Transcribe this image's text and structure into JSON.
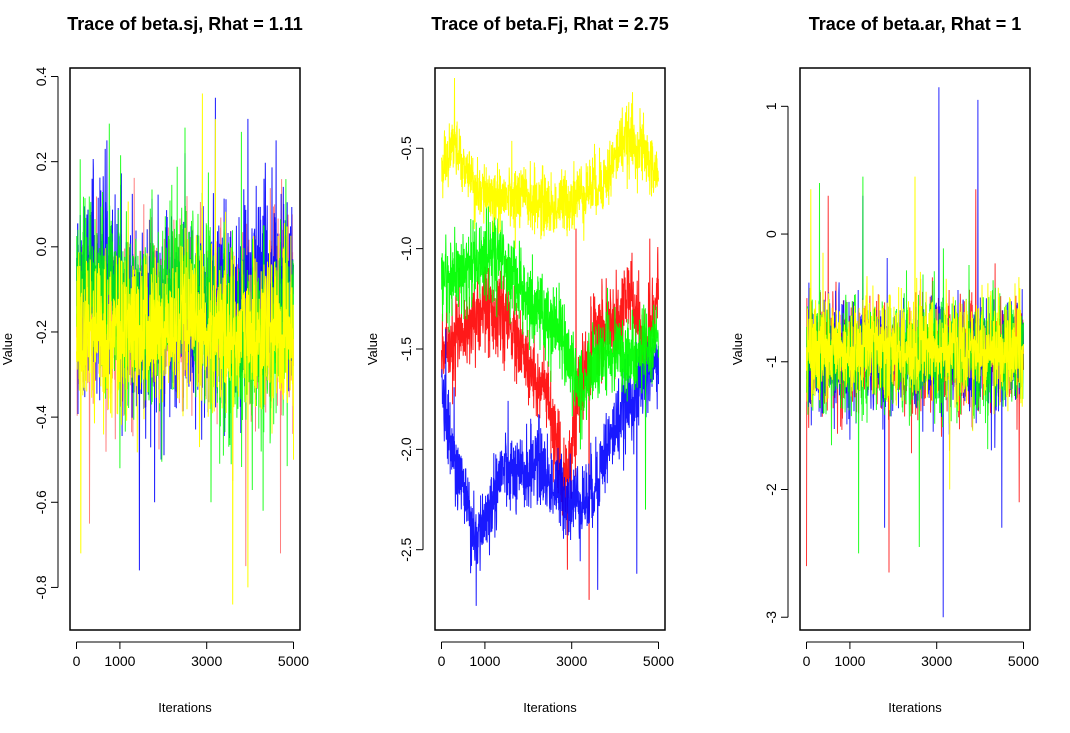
{
  "figure": {
    "layout": "1x3 panel grid",
    "chart_data": [
      {
        "type": "line",
        "title": "Trace of beta.sj, Rhat = 1.11",
        "xlabel": "Iterations",
        "ylabel": "Value",
        "xlim": [
          -150,
          5150
        ],
        "ylim": [
          -0.9,
          0.42
        ],
        "x_ticks": [
          0,
          1000,
          3000,
          5000
        ],
        "x_tick_labels": [
          "0",
          "1000",
          "3000",
          "5000"
        ],
        "y_ticks": [
          -0.8,
          -0.6,
          -0.4,
          -0.2,
          0.0,
          0.2,
          0.4
        ],
        "y_tick_labels": [
          "-0.8",
          "-0.6",
          "-0.4",
          "-0.2",
          "0.0",
          "0.2",
          "0.4"
        ],
        "grid": false,
        "legend": "none",
        "n_iterations": 5000,
        "series": [
          {
            "color": "#ff0000",
            "alpha": 0.5,
            "center": [
              [
                0,
                -0.16
              ],
              [
                5000,
                -0.16
              ]
            ],
            "spread": 0.1,
            "spikes": [
              [
                300,
                -0.65
              ],
              [
                1550,
                0.1
              ],
              [
                3600,
                -0.55
              ],
              [
                3900,
                -0.75
              ],
              [
                4700,
                -0.72
              ],
              [
                5000,
                -0.28
              ]
            ]
          },
          {
            "color": "#0000ff",
            "alpha": 0.9,
            "center": [
              [
                0,
                -0.08
              ],
              [
                1100,
                -0.08
              ],
              [
                1400,
                -0.2
              ],
              [
                1800,
                -0.16
              ],
              [
                3500,
                -0.16
              ],
              [
                4200,
                -0.1
              ],
              [
                5000,
                -0.1
              ]
            ],
            "spread": 0.12,
            "spikes": [
              [
                700,
                0.25
              ],
              [
                1450,
                -0.76
              ],
              [
                2500,
                0.22
              ],
              [
                3200,
                0.35
              ],
              [
                4600,
                0.25
              ],
              [
                1800,
                -0.6
              ]
            ]
          },
          {
            "color": "#00ff00",
            "alpha": 0.85,
            "center": [
              [
                0,
                -0.1
              ],
              [
                1000,
                -0.1
              ],
              [
                1600,
                -0.2
              ],
              [
                2300,
                -0.1
              ],
              [
                2700,
                -0.08
              ],
              [
                3500,
                -0.22
              ],
              [
                5000,
                -0.2
              ]
            ],
            "spread": 0.11,
            "spikes": [
              [
                2500,
                0.28
              ],
              [
                3100,
                -0.6
              ],
              [
                3800,
                0.27
              ],
              [
                1000,
                -0.52
              ],
              [
                4300,
                -0.62
              ]
            ]
          },
          {
            "color": "#ffff00",
            "alpha": 1.0,
            "center": [
              [
                0,
                -0.2
              ],
              [
                5000,
                -0.2
              ]
            ],
            "spread": 0.09,
            "spikes": [
              [
                100,
                -0.72
              ],
              [
                2900,
                0.36
              ],
              [
                3600,
                -0.84
              ],
              [
                3950,
                -0.8
              ],
              [
                3200,
                0.3
              ],
              [
                5000,
                -0.5
              ]
            ]
          }
        ]
      },
      {
        "type": "line",
        "title": "Trace of beta.Fj, Rhat = 2.75",
        "xlabel": "Iterations",
        "ylabel": "Value",
        "xlim": [
          -150,
          5150
        ],
        "ylim": [
          -2.9,
          -0.1
        ],
        "x_ticks": [
          0,
          1000,
          3000,
          5000
        ],
        "x_tick_labels": [
          "0",
          "1000",
          "3000",
          "5000"
        ],
        "y_ticks": [
          -2.5,
          -2.0,
          -1.5,
          -1.0,
          -0.5
        ],
        "y_tick_labels": [
          "-2.5",
          "-2.0",
          "-1.5",
          "-1.0",
          "-0.5"
        ],
        "grid": false,
        "legend": "none",
        "n_iterations": 5000,
        "series": [
          {
            "color": "#ff0000",
            "alpha": 0.9,
            "center": [
              [
                0,
                -1.5
              ],
              [
                500,
                -1.4
              ],
              [
                1000,
                -1.3
              ],
              [
                1500,
                -1.35
              ],
              [
                2000,
                -1.6
              ],
              [
                2400,
                -1.7
              ],
              [
                2800,
                -2.2
              ],
              [
                3200,
                -1.7
              ],
              [
                3600,
                -1.4
              ],
              [
                4000,
                -1.4
              ],
              [
                4300,
                -1.2
              ],
              [
                4700,
                -1.5
              ],
              [
                5000,
                -1.2
              ]
            ],
            "spread": 0.1,
            "spikes": [
              [
                2900,
                -2.6
              ],
              [
                3400,
                -2.75
              ],
              [
                3100,
                -0.9
              ],
              [
                4800,
                -0.95
              ]
            ]
          },
          {
            "color": "#0000ff",
            "alpha": 0.9,
            "center": [
              [
                0,
                -1.7
              ],
              [
                200,
                -1.95
              ],
              [
                500,
                -2.2
              ],
              [
                800,
                -2.45
              ],
              [
                1100,
                -2.3
              ],
              [
                1400,
                -2.1
              ],
              [
                1800,
                -2.15
              ],
              [
                2200,
                -2.05
              ],
              [
                2600,
                -2.2
              ],
              [
                3000,
                -2.25
              ],
              [
                3400,
                -2.25
              ],
              [
                3800,
                -2.0
              ],
              [
                4200,
                -1.8
              ],
              [
                4700,
                -1.65
              ],
              [
                5000,
                -1.55
              ]
            ],
            "spread": 0.1,
            "spikes": [
              [
                800,
                -2.78
              ],
              [
                3600,
                -2.7
              ],
              [
                4500,
                -2.62
              ],
              [
                100,
                -1.4
              ]
            ]
          },
          {
            "color": "#00ff00",
            "alpha": 0.95,
            "center": [
              [
                0,
                -1.15
              ],
              [
                600,
                -1.1
              ],
              [
                1200,
                -1.0
              ],
              [
                1800,
                -1.2
              ],
              [
                2200,
                -1.3
              ],
              [
                2700,
                -1.4
              ],
              [
                3200,
                -1.7
              ],
              [
                3700,
                -1.5
              ],
              [
                4200,
                -1.55
              ],
              [
                4700,
                -1.5
              ],
              [
                5000,
                -1.45
              ]
            ],
            "spread": 0.1,
            "spikes": [
              [
                3200,
                -2.0
              ],
              [
                4700,
                -2.3
              ],
              [
                1300,
                -0.85
              ]
            ]
          },
          {
            "color": "#ffff00",
            "alpha": 1.0,
            "center": [
              [
                0,
                -0.6
              ],
              [
                300,
                -0.5
              ],
              [
                800,
                -0.7
              ],
              [
                1400,
                -0.75
              ],
              [
                2000,
                -0.75
              ],
              [
                2600,
                -0.8
              ],
              [
                3000,
                -0.75
              ],
              [
                3400,
                -0.7
              ],
              [
                3800,
                -0.65
              ],
              [
                4200,
                -0.45
              ],
              [
                4600,
                -0.5
              ],
              [
                5000,
                -0.65
              ]
            ],
            "spread": 0.08,
            "spikes": [
              [
                300,
                -0.15
              ],
              [
                4400,
                -0.22
              ],
              [
                1700,
                -1.0
              ]
            ]
          }
        ]
      },
      {
        "type": "line",
        "title": "Trace of beta.ar, Rhat = 1",
        "xlabel": "Iterations",
        "ylabel": "Value",
        "xlim": [
          -150,
          5150
        ],
        "ylim": [
          -3.1,
          1.3
        ],
        "x_ticks": [
          0,
          1000,
          3000,
          5000
        ],
        "x_tick_labels": [
          "0",
          "1000",
          "3000",
          "5000"
        ],
        "y_ticks": [
          -3,
          -2,
          -1,
          0,
          1
        ],
        "y_tick_labels": [
          "-3",
          "-2",
          "-1",
          "0",
          "1"
        ],
        "grid": false,
        "legend": "none",
        "n_iterations": 5000,
        "series": [
          {
            "color": "#ff0000",
            "alpha": 0.8,
            "center": [
              [
                0,
                -0.95
              ],
              [
                5000,
                -0.95
              ]
            ],
            "spread": 0.22,
            "spikes": [
              [
                0,
                -2.6
              ],
              [
                1900,
                -2.65
              ],
              [
                3900,
                0.35
              ],
              [
                4900,
                -2.1
              ],
              [
                500,
                0.3
              ]
            ]
          },
          {
            "color": "#0000ff",
            "alpha": 0.85,
            "center": [
              [
                0,
                -0.95
              ],
              [
                5000,
                -0.95
              ]
            ],
            "spread": 0.22,
            "spikes": [
              [
                3050,
                1.15
              ],
              [
                3150,
                -3.0
              ],
              [
                3950,
                1.05
              ],
              [
                1800,
                -2.3
              ],
              [
                4500,
                -2.3
              ],
              [
                1300,
                0.3
              ]
            ]
          },
          {
            "color": "#00ff00",
            "alpha": 0.85,
            "center": [
              [
                0,
                -0.95
              ],
              [
                5000,
                -0.95
              ]
            ],
            "spread": 0.22,
            "spikes": [
              [
                1200,
                -2.5
              ],
              [
                1300,
                0.45
              ],
              [
                2600,
                -2.45
              ],
              [
                300,
                0.4
              ]
            ]
          },
          {
            "color": "#ffff00",
            "alpha": 1.0,
            "center": [
              [
                0,
                -0.9
              ],
              [
                5000,
                -0.9
              ]
            ],
            "spread": 0.2,
            "spikes": [
              [
                100,
                0.35
              ],
              [
                2500,
                0.45
              ],
              [
                3300,
                -2.0
              ]
            ]
          }
        ]
      }
    ]
  }
}
